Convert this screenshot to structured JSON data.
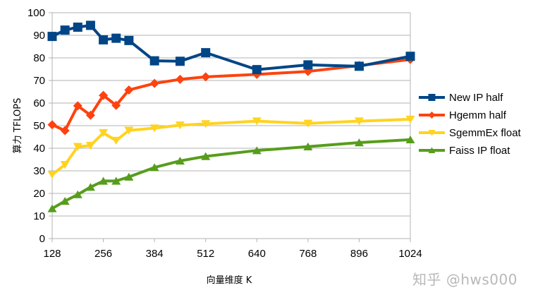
{
  "chart_data": {
    "type": "line",
    "title": "",
    "xlabel": "向量维度 K",
    "ylabel": "算力 TFLOPS",
    "x": [
      128,
      160,
      192,
      224,
      256,
      288,
      320,
      384,
      448,
      512,
      640,
      768,
      896,
      1024
    ],
    "xticks": [
      128,
      256,
      384,
      512,
      640,
      768,
      896,
      1024
    ],
    "xlim": [
      128,
      1024
    ],
    "yticks": [
      0,
      10,
      20,
      30,
      40,
      50,
      60,
      70,
      80,
      90,
      100
    ],
    "ylim": [
      0,
      100
    ],
    "grid": "horizontal",
    "legend_position": "right",
    "series": [
      {
        "name": "New IP half",
        "color": "#004586",
        "marker": "square",
        "values": [
          89.5,
          92.3,
          93.6,
          94.4,
          88.0,
          88.7,
          87.7,
          78.7,
          78.5,
          82.3,
          74.8,
          76.9,
          76.3,
          80.7
        ]
      },
      {
        "name": "Hgemm half",
        "color": "#ff420e",
        "marker": "diamond",
        "values": [
          50.4,
          47.8,
          58.8,
          54.6,
          63.4,
          59.0,
          65.8,
          68.7,
          70.5,
          71.6,
          72.7,
          74.0,
          76.6,
          79.3
        ]
      },
      {
        "name": "SgemmEx float",
        "color": "#ffd320",
        "marker": "triangle-down",
        "values": [
          28.3,
          32.7,
          40.7,
          41.2,
          46.8,
          43.4,
          47.9,
          48.9,
          50.2,
          50.8,
          52.0,
          51.0,
          52.0,
          52.8
        ]
      },
      {
        "name": "Faiss IP float",
        "color": "#579d1c",
        "marker": "triangle-up",
        "values": [
          13.3,
          16.6,
          19.5,
          22.8,
          25.5,
          25.5,
          27.3,
          31.5,
          34.4,
          36.4,
          39.0,
          40.7,
          42.5,
          43.8
        ]
      }
    ]
  },
  "watermark": "知乎 @hws000"
}
